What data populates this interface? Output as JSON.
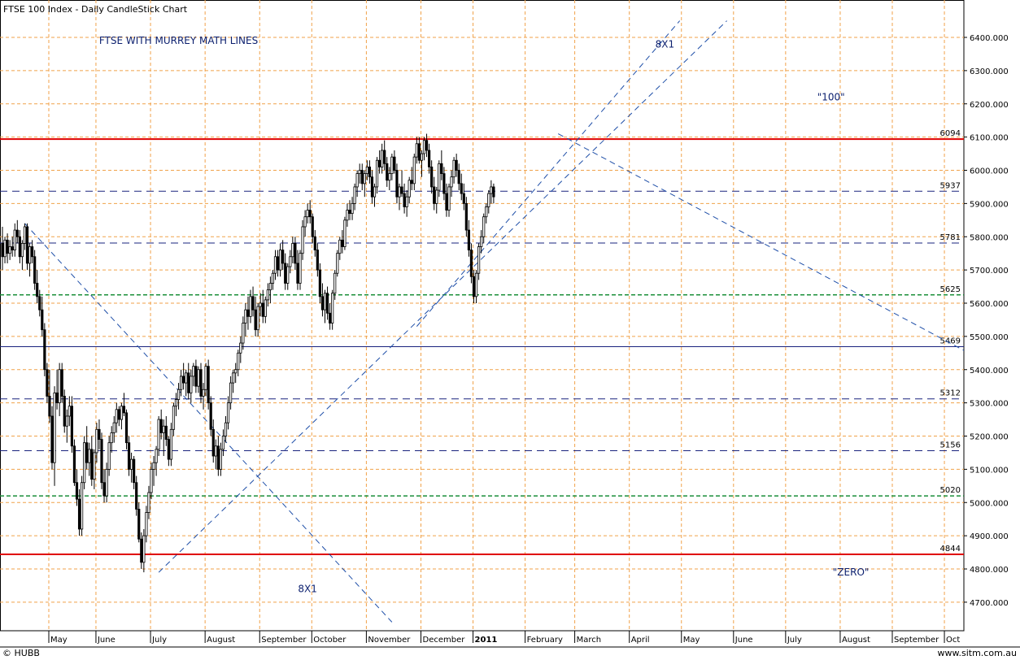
{
  "window": {
    "title": "FTSE 100 Index - Daily CandleStick Chart",
    "footer_left": "© HUBB",
    "footer_right": "www.sitm.com.au"
  },
  "colors": {
    "grid": "#f0a24a",
    "candle": "#000000",
    "red_line": "#e00000",
    "navy_line": "#1a237e",
    "green_line": "#1b8f3a",
    "trend_line": "#1f4fa8",
    "annotation": "#0b1f6e"
  },
  "chart_data": {
    "type": "candlestick",
    "title": "FTSE 100 Index - Daily CandleStick Chart",
    "ylim": [
      4640,
      6450
    ],
    "y_ticks": [
      4700,
      4800,
      4900,
      5000,
      5100,
      5200,
      5300,
      5400,
      5500,
      5600,
      5700,
      5800,
      5900,
      6000,
      6100,
      6200,
      6300,
      6400
    ],
    "y_tick_labels": [
      "4700.000",
      "4800.000",
      "4900.000",
      "5000.000",
      "5100.000",
      "5200.000",
      "5300.000",
      "5400.000",
      "5500.000",
      "5600.000",
      "5700.000",
      "5800.000",
      "5900.000",
      "6000.000",
      "6100.000",
      "6200.000",
      "6300.000",
      "6400.000"
    ],
    "months": [
      {
        "label": "May",
        "idx": 20,
        "bold": false
      },
      {
        "label": "June",
        "idx": 39,
        "bold": false
      },
      {
        "label": "July",
        "idx": 61,
        "bold": false
      },
      {
        "label": "August",
        "idx": 83,
        "bold": false
      },
      {
        "label": "September",
        "idx": 105,
        "bold": false
      },
      {
        "label": "October",
        "idx": 126,
        "bold": false
      },
      {
        "label": "November",
        "idx": 148,
        "bold": false
      },
      {
        "label": "December",
        "idx": 170,
        "bold": false
      },
      {
        "label": "2011",
        "idx": 191,
        "bold": true
      },
      {
        "label": "February",
        "idx": 212,
        "bold": false
      },
      {
        "label": "March",
        "idx": 232,
        "bold": false
      },
      {
        "label": "April",
        "idx": 254,
        "bold": false
      },
      {
        "label": "May",
        "idx": 275,
        "bold": false
      },
      {
        "label": "June",
        "idx": 296,
        "bold": false
      },
      {
        "label": "July",
        "idx": 317,
        "bold": false
      },
      {
        "label": "August",
        "idx": 339,
        "bold": false
      },
      {
        "label": "September",
        "idx": 360,
        "bold": false
      },
      {
        "label": "Oct",
        "idx": 381,
        "bold": false
      }
    ],
    "murrey_lines": [
      {
        "value": 6094,
        "label": "6094",
        "style": "red-solid"
      },
      {
        "value": 5937,
        "label": "5937",
        "style": "navy-dash"
      },
      {
        "value": 5781,
        "label": "5781",
        "style": "navy-dash"
      },
      {
        "value": 5625,
        "label": "5625",
        "style": "green-dash"
      },
      {
        "value": 5469,
        "label": "5469",
        "style": "navy-solid"
      },
      {
        "value": 5312,
        "label": "5312",
        "style": "navy-dash"
      },
      {
        "value": 5156,
        "label": "5156",
        "style": "navy-dash"
      },
      {
        "value": 5020,
        "label": "5020",
        "style": "green-dash"
      },
      {
        "value": 4844,
        "label": "4844",
        "style": "red-solid"
      }
    ],
    "trend_lines": [
      {
        "name": "downtrend-may",
        "from": {
          "idx": 9,
          "price": 5840
        },
        "to": {
          "idx": 157,
          "price": 4640
        }
      },
      {
        "name": "uptrend-july",
        "from": {
          "idx": 63,
          "price": 4790
        },
        "to": {
          "idx": 292,
          "price": 6450
        }
      },
      {
        "name": "uptrend-november",
        "from": {
          "idx": 167,
          "price": 5530
        },
        "to": {
          "idx": 273,
          "price": 6450
        }
      },
      {
        "name": "downtrend-february",
        "from": {
          "idx": 224,
          "price": 6110
        },
        "to": {
          "idx": 392,
          "price": 5440
        }
      }
    ],
    "annotations": [
      {
        "name": "title-annotation",
        "text": "FTSE  WITH MURREY MATH LINES",
        "idx": 71,
        "price": 6380
      },
      {
        "name": "label-8x1-upper",
        "text": "8X1",
        "idx": 267,
        "price": 6370
      },
      {
        "name": "label-100",
        "text": "\"100\"",
        "idx": 334,
        "price": 6210
      },
      {
        "name": "label-8x1-lower",
        "text": "8X1",
        "idx": 123,
        "price": 4730
      },
      {
        "name": "label-zero",
        "text": "\"ZERO\"",
        "idx": 342,
        "price": 4780
      }
    ],
    "candles": [
      [
        5780,
        5830,
        5700,
        5740
      ],
      [
        5740,
        5800,
        5720,
        5790
      ],
      [
        5790,
        5810,
        5720,
        5750
      ],
      [
        5750,
        5790,
        5730,
        5770
      ],
      [
        5770,
        5800,
        5740,
        5760
      ],
      [
        5760,
        5840,
        5740,
        5820
      ],
      [
        5820,
        5850,
        5780,
        5800
      ],
      [
        5800,
        5820,
        5720,
        5740
      ],
      [
        5740,
        5790,
        5700,
        5780
      ],
      [
        5780,
        5840,
        5760,
        5830
      ],
      [
        5830,
        5840,
        5700,
        5720
      ],
      [
        5720,
        5780,
        5680,
        5770
      ],
      [
        5770,
        5790,
        5720,
        5740
      ],
      [
        5740,
        5760,
        5640,
        5660
      ],
      [
        5660,
        5700,
        5600,
        5620
      ],
      [
        5620,
        5640,
        5560,
        5580
      ],
      [
        5580,
        5620,
        5500,
        5520
      ],
      [
        5520,
        5540,
        5380,
        5400
      ],
      [
        5400,
        5420,
        5300,
        5320
      ],
      [
        5320,
        5400,
        5240,
        5260
      ],
      [
        5260,
        5290,
        5100,
        5120
      ],
      [
        5120,
        5350,
        5050,
        5330
      ],
      [
        5330,
        5400,
        5280,
        5300
      ],
      [
        5300,
        5420,
        5260,
        5400
      ],
      [
        5400,
        5420,
        5300,
        5320
      ],
      [
        5320,
        5340,
        5210,
        5230
      ],
      [
        5230,
        5280,
        5180,
        5260
      ],
      [
        5260,
        5320,
        5230,
        5290
      ],
      [
        5290,
        5320,
        5150,
        5170
      ],
      [
        5170,
        5190,
        5050,
        5060
      ],
      [
        5060,
        5100,
        4990,
        5010
      ],
      [
        5010,
        5040,
        4900,
        4920
      ],
      [
        4920,
        5080,
        4900,
        5060
      ],
      [
        5060,
        5200,
        5040,
        5180
      ],
      [
        5180,
        5230,
        5100,
        5120
      ],
      [
        5120,
        5180,
        5080,
        5160
      ],
      [
        5160,
        5200,
        5050,
        5070
      ],
      [
        5070,
        5160,
        5040,
        5150
      ],
      [
        5150,
        5240,
        5120,
        5220
      ],
      [
        5220,
        5250,
        5160,
        5190
      ],
      [
        5190,
        5210,
        5040,
        5060
      ],
      [
        5060,
        5100,
        5000,
        5020
      ],
      [
        5020,
        5120,
        5000,
        5100
      ],
      [
        5100,
        5200,
        5080,
        5180
      ],
      [
        5180,
        5230,
        5150,
        5210
      ],
      [
        5210,
        5260,
        5180,
        5240
      ],
      [
        5240,
        5300,
        5210,
        5280
      ],
      [
        5280,
        5290,
        5230,
        5250
      ],
      [
        5250,
        5300,
        5220,
        5290
      ],
      [
        5290,
        5330,
        5260,
        5270
      ],
      [
        5270,
        5280,
        5160,
        5180
      ],
      [
        5180,
        5200,
        5080,
        5100
      ],
      [
        5100,
        5150,
        5060,
        5130
      ],
      [
        5130,
        5140,
        5040,
        5060
      ],
      [
        5060,
        5080,
        4960,
        4980
      ],
      [
        4980,
        5000,
        4880,
        4890
      ],
      [
        4890,
        4910,
        4800,
        4820
      ],
      [
        4820,
        4920,
        4790,
        4900
      ],
      [
        4900,
        4990,
        4880,
        4970
      ],
      [
        4970,
        5050,
        4950,
        5030
      ],
      [
        5030,
        5120,
        5010,
        5100
      ],
      [
        5100,
        5140,
        5050,
        5120
      ],
      [
        5120,
        5170,
        5080,
        5160
      ],
      [
        5160,
        5260,
        5140,
        5250
      ],
      [
        5250,
        5280,
        5190,
        5210
      ],
      [
        5210,
        5250,
        5140,
        5230
      ],
      [
        5230,
        5260,
        5170,
        5190
      ],
      [
        5190,
        5200,
        5110,
        5130
      ],
      [
        5130,
        5240,
        5110,
        5220
      ],
      [
        5220,
        5300,
        5200,
        5290
      ],
      [
        5290,
        5330,
        5260,
        5310
      ],
      [
        5310,
        5360,
        5280,
        5340
      ],
      [
        5340,
        5400,
        5320,
        5380
      ],
      [
        5380,
        5420,
        5340,
        5360
      ],
      [
        5360,
        5400,
        5320,
        5390
      ],
      [
        5390,
        5420,
        5310,
        5330
      ],
      [
        5330,
        5400,
        5300,
        5380
      ],
      [
        5380,
        5420,
        5350,
        5410
      ],
      [
        5410,
        5430,
        5330,
        5350
      ],
      [
        5350,
        5410,
        5330,
        5400
      ],
      [
        5400,
        5420,
        5300,
        5320
      ],
      [
        5320,
        5360,
        5280,
        5340
      ],
      [
        5340,
        5420,
        5320,
        5410
      ],
      [
        5410,
        5430,
        5280,
        5300
      ],
      [
        5300,
        5320,
        5200,
        5220
      ],
      [
        5220,
        5250,
        5120,
        5140
      ],
      [
        5140,
        5190,
        5100,
        5170
      ],
      [
        5170,
        5200,
        5080,
        5100
      ],
      [
        5100,
        5180,
        5080,
        5160
      ],
      [
        5160,
        5220,
        5140,
        5200
      ],
      [
        5200,
        5260,
        5180,
        5240
      ],
      [
        5240,
        5320,
        5220,
        5300
      ],
      [
        5300,
        5380,
        5280,
        5360
      ],
      [
        5360,
        5400,
        5330,
        5390
      ],
      [
        5390,
        5420,
        5360,
        5400
      ],
      [
        5400,
        5460,
        5380,
        5450
      ],
      [
        5450,
        5500,
        5420,
        5480
      ],
      [
        5480,
        5560,
        5460,
        5540
      ],
      [
        5540,
        5600,
        5500,
        5580
      ],
      [
        5580,
        5620,
        5520,
        5560
      ],
      [
        5560,
        5640,
        5540,
        5620
      ],
      [
        5620,
        5650,
        5560,
        5580
      ],
      [
        5580,
        5620,
        5500,
        5520
      ],
      [
        5520,
        5600,
        5500,
        5590
      ],
      [
        5590,
        5630,
        5560,
        5600
      ],
      [
        5600,
        5640,
        5540,
        5560
      ],
      [
        5560,
        5620,
        5540,
        5610
      ],
      [
        5610,
        5660,
        5590,
        5640
      ],
      [
        5640,
        5680,
        5600,
        5660
      ],
      [
        5660,
        5700,
        5640,
        5690
      ],
      [
        5690,
        5760,
        5670,
        5740
      ],
      [
        5740,
        5760,
        5680,
        5700
      ],
      [
        5700,
        5780,
        5680,
        5760
      ],
      [
        5760,
        5790,
        5700,
        5720
      ],
      [
        5720,
        5750,
        5640,
        5660
      ],
      [
        5660,
        5720,
        5640,
        5710
      ],
      [
        5710,
        5760,
        5690,
        5740
      ],
      [
        5740,
        5800,
        5720,
        5780
      ],
      [
        5780,
        5800,
        5700,
        5720
      ],
      [
        5720,
        5760,
        5640,
        5660
      ],
      [
        5660,
        5760,
        5640,
        5750
      ],
      [
        5750,
        5850,
        5730,
        5830
      ],
      [
        5830,
        5880,
        5800,
        5860
      ],
      [
        5860,
        5900,
        5840,
        5880
      ],
      [
        5880,
        5910,
        5840,
        5860
      ],
      [
        5860,
        5870,
        5780,
        5800
      ],
      [
        5800,
        5820,
        5740,
        5760
      ],
      [
        5760,
        5780,
        5680,
        5700
      ],
      [
        5700,
        5720,
        5600,
        5620
      ],
      [
        5620,
        5660,
        5560,
        5580
      ],
      [
        5580,
        5640,
        5540,
        5630
      ],
      [
        5630,
        5650,
        5550,
        5570
      ],
      [
        5570,
        5600,
        5520,
        5540
      ],
      [
        5540,
        5640,
        5520,
        5630
      ],
      [
        5630,
        5700,
        5610,
        5690
      ],
      [
        5690,
        5760,
        5680,
        5750
      ],
      [
        5750,
        5800,
        5730,
        5790
      ],
      [
        5790,
        5820,
        5750,
        5770
      ],
      [
        5770,
        5860,
        5760,
        5850
      ],
      [
        5850,
        5900,
        5830,
        5880
      ],
      [
        5880,
        5910,
        5850,
        5870
      ],
      [
        5870,
        5920,
        5850,
        5900
      ],
      [
        5900,
        5960,
        5880,
        5950
      ],
      [
        5950,
        6000,
        5920,
        5990
      ],
      [
        5990,
        6020,
        5960,
        6000
      ],
      [
        6000,
        6020,
        5940,
        5960
      ],
      [
        5960,
        6000,
        5920,
        5990
      ],
      [
        5990,
        6030,
        5970,
        6010
      ],
      [
        6010,
        6030,
        5960,
        5980
      ],
      [
        5980,
        6000,
        5900,
        5920
      ],
      [
        5920,
        5960,
        5890,
        5950
      ],
      [
        5950,
        6040,
        5930,
        6030
      ],
      [
        6030,
        6060,
        5990,
        6010
      ],
      [
        6010,
        6080,
        5990,
        6060
      ],
      [
        6060,
        6090,
        6000,
        6020
      ],
      [
        6020,
        6040,
        5950,
        5970
      ],
      [
        5970,
        6010,
        5940,
        5990
      ],
      [
        5990,
        6050,
        5970,
        6040
      ],
      [
        6040,
        6060,
        5990,
        6000
      ],
      [
        6000,
        6020,
        5900,
        5920
      ],
      [
        5920,
        5960,
        5880,
        5950
      ],
      [
        5950,
        6000,
        5920,
        5930
      ],
      [
        5930,
        5960,
        5870,
        5890
      ],
      [
        5890,
        5940,
        5860,
        5920
      ],
      [
        5920,
        5980,
        5900,
        5970
      ],
      [
        5970,
        6010,
        5940,
        5960
      ],
      [
        5960,
        6050,
        5940,
        6040
      ],
      [
        6040,
        6100,
        6020,
        6080
      ],
      [
        6080,
        6100,
        6020,
        6030
      ],
      [
        6030,
        6060,
        5980,
        6050
      ],
      [
        6050,
        6100,
        6030,
        6090
      ],
      [
        6090,
        6110,
        6040,
        6060
      ],
      [
        6060,
        6080,
        5990,
        6010
      ],
      [
        6010,
        6030,
        5930,
        5950
      ],
      [
        5950,
        5980,
        5880,
        5900
      ],
      [
        5900,
        5950,
        5870,
        5940
      ],
      [
        5940,
        6030,
        5920,
        6020
      ],
      [
        6020,
        6060,
        5970,
        5990
      ],
      [
        5990,
        6010,
        5910,
        5930
      ],
      [
        5930,
        5960,
        5860,
        5880
      ],
      [
        5880,
        5960,
        5860,
        5950
      ],
      [
        5950,
        6000,
        5920,
        5980
      ],
      [
        5980,
        6040,
        5960,
        6030
      ],
      [
        6030,
        6050,
        5980,
        6000
      ],
      [
        6000,
        6020,
        5940,
        5960
      ],
      [
        5960,
        5990,
        5910,
        5930
      ],
      [
        5930,
        5960,
        5880,
        5900
      ],
      [
        5900,
        5920,
        5800,
        5820
      ],
      [
        5820,
        5850,
        5740,
        5760
      ],
      [
        5760,
        5780,
        5660,
        5680
      ],
      [
        5680,
        5700,
        5600,
        5620
      ],
      [
        5620,
        5700,
        5600,
        5690
      ],
      [
        5690,
        5780,
        5670,
        5770
      ],
      [
        5770,
        5820,
        5750,
        5800
      ],
      [
        5800,
        5870,
        5780,
        5860
      ],
      [
        5860,
        5900,
        5840,
        5890
      ],
      [
        5890,
        5940,
        5870,
        5930
      ],
      [
        5930,
        5970,
        5900,
        5950
      ],
      [
        5950,
        5960,
        5900,
        5920
      ]
    ]
  }
}
